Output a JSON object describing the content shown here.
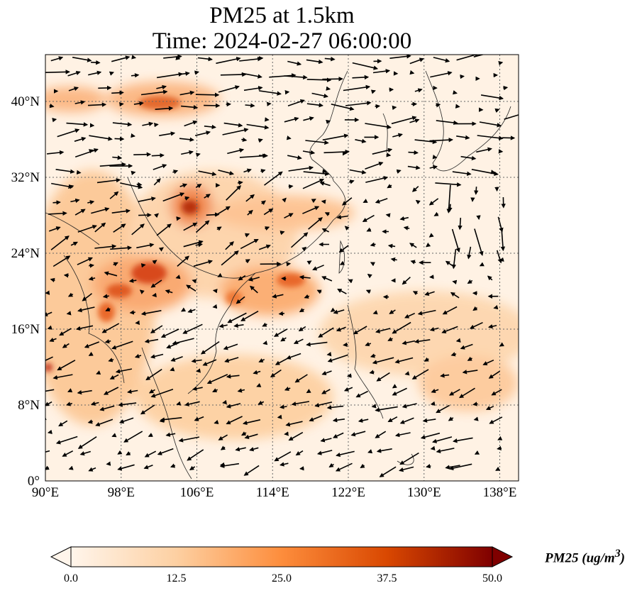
{
  "title": {
    "line1": "PM25 at 1.5km",
    "line2": "Time: 2024-02-27 06:00:00"
  },
  "map": {
    "lon_range": [
      90,
      140
    ],
    "lat_range": [
      0,
      45
    ],
    "lon_ticks": [
      "90°E",
      "98°E",
      "106°E",
      "114°E",
      "122°E",
      "130°E",
      "138°E"
    ],
    "lat_ticks": [
      "0°",
      "8°N",
      "16°N",
      "24°N",
      "32°N",
      "40°N"
    ],
    "gridlines": "dotted"
  },
  "colorbar": {
    "label": "PM25 (ug/m",
    "label_sup": "3",
    "label_end": ")",
    "ticks": [
      "0.0",
      "12.5",
      "25.0",
      "37.5",
      "50.0"
    ],
    "range": [
      0,
      50
    ],
    "colormap": [
      "#fff5eb",
      "#fdd0a2",
      "#fd8d3c",
      "#d94801",
      "#7f2704"
    ],
    "extend": "both"
  },
  "colors": {
    "low": "#fff5eb",
    "mid": "#fdbe85",
    "high": "#d94801",
    "max": "#7f0000"
  }
}
